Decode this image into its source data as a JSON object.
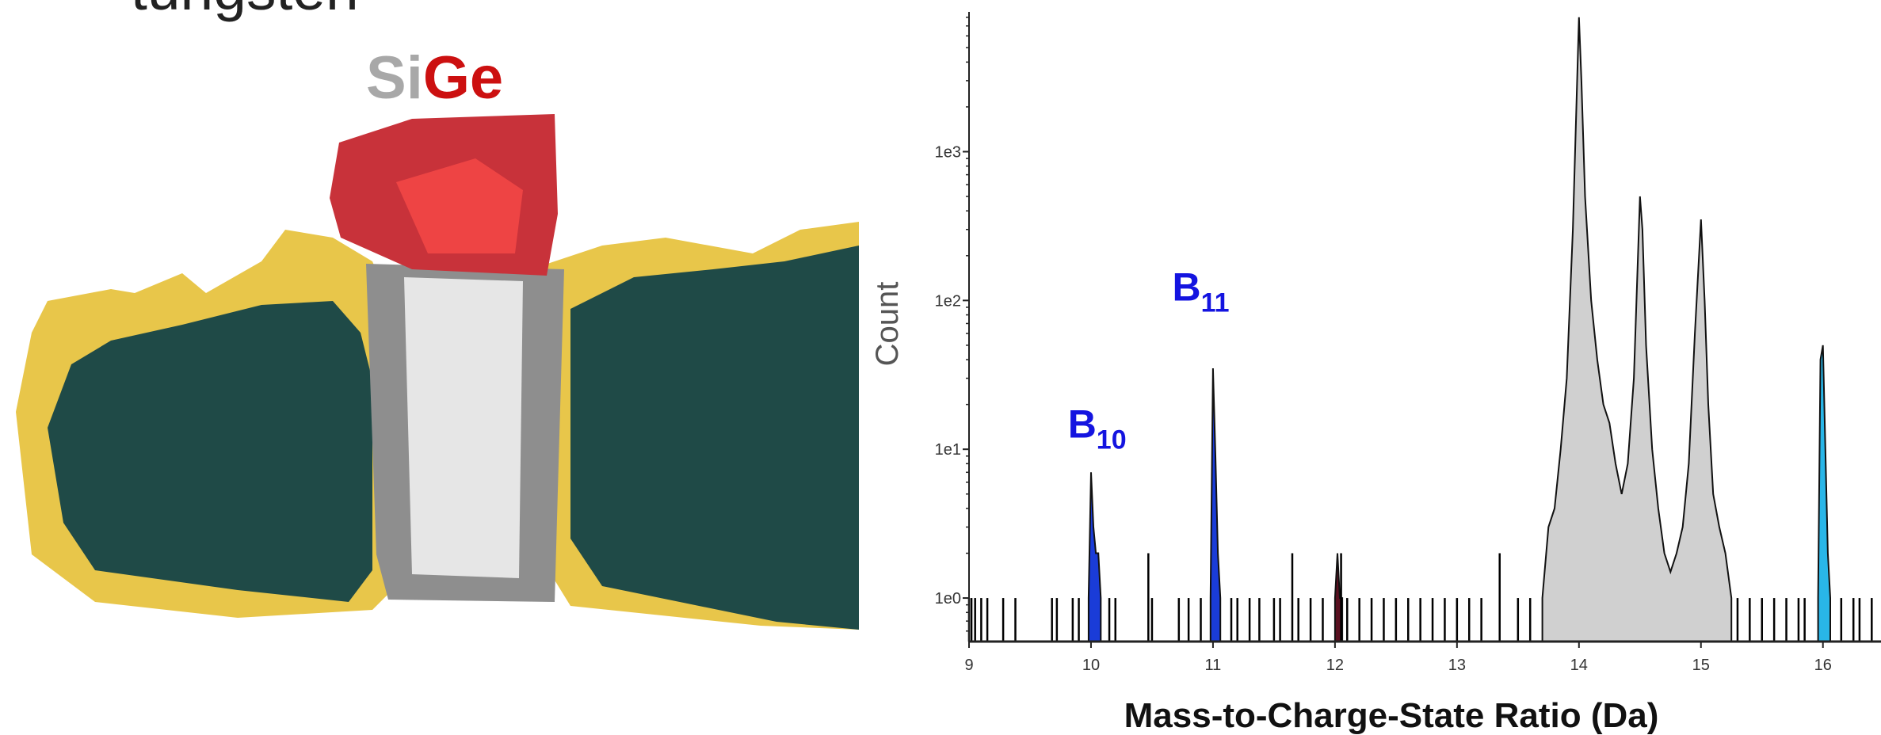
{
  "figure_labels": {
    "top": "tungsten",
    "si": "Si",
    "ge": "Ge"
  },
  "chart_data": {
    "type": "area",
    "x_label": "Mass-to-Charge-State Ratio (Da)",
    "y_label": "Count",
    "log_y": true,
    "xlim": [
      9,
      16.45
    ],
    "ylim": [
      0.51,
      8700
    ],
    "xticks": [
      9,
      10,
      11,
      12,
      13,
      14,
      15,
      16
    ],
    "yticks": [
      {
        "value": 1,
        "label": "1e0"
      },
      {
        "value": 10,
        "label": "1e1"
      },
      {
        "value": 100,
        "label": "1e2"
      },
      {
        "value": 1000,
        "label": "1e3"
      }
    ],
    "annotations": [
      {
        "text": "B",
        "subscript": "10",
        "x": 10.05,
        "y": 12
      },
      {
        "text": "B",
        "subscript": "11",
        "x": 10.9,
        "y": 100
      }
    ],
    "series": [
      {
        "type": "area",
        "color": "#d0d0d0",
        "x": [
          13.7,
          13.75,
          13.8,
          13.85,
          13.9,
          13.95,
          14.0,
          14.02,
          14.05,
          14.1,
          14.15,
          14.2,
          14.25,
          14.3,
          14.35,
          14.4,
          14.45,
          14.5,
          14.52,
          14.55,
          14.6,
          14.65,
          14.7,
          14.75,
          14.8,
          14.85,
          14.9,
          14.95,
          15.0,
          15.03,
          15.06,
          15.1,
          15.15,
          15.2,
          15.25
        ],
        "values": [
          1,
          3,
          4,
          10,
          30,
          300,
          8000,
          3000,
          500,
          100,
          40,
          20,
          15,
          8,
          5,
          8,
          30,
          500,
          300,
          50,
          10,
          4,
          2,
          1.5,
          2,
          3,
          8,
          60,
          350,
          100,
          20,
          5,
          3,
          2,
          1
        ]
      },
      {
        "type": "area",
        "color": "#1a3cd8",
        "x": [
          9.98,
          10.0,
          10.02,
          10.04,
          10.06,
          10.08
        ],
        "values": [
          1,
          7,
          3,
          2,
          2,
          1
        ]
      },
      {
        "type": "area",
        "color": "#1a3cd8",
        "x": [
          10.98,
          11.0,
          11.02,
          11.04,
          11.06
        ],
        "values": [
          1,
          35,
          9,
          2,
          1
        ]
      },
      {
        "type": "area",
        "color": "#5a1020",
        "x": [
          12.0,
          12.02,
          12.04,
          12.06
        ],
        "values": [
          1,
          2,
          1,
          1
        ]
      },
      {
        "type": "area",
        "color": "#29b6e8",
        "x": [
          15.96,
          15.98,
          16.0,
          16.02,
          16.04,
          16.06
        ],
        "values": [
          1,
          40,
          50,
          10,
          2,
          1
        ]
      },
      {
        "type": "spikes",
        "color": "#000000",
        "x": [
          9.0,
          9.02,
          9.05,
          9.1,
          9.15,
          9.28,
          9.38,
          9.68,
          9.72,
          9.85,
          9.9,
          10.15,
          10.2,
          10.47,
          10.5,
          10.72,
          10.8,
          10.9,
          11.15,
          11.2,
          11.3,
          11.38,
          11.5,
          11.55,
          11.65,
          11.7,
          11.8,
          11.9,
          12.05,
          12.1,
          12.2,
          12.3,
          12.4,
          12.5,
          12.6,
          12.7,
          12.8,
          12.9,
          13.0,
          13.1,
          13.2,
          13.35,
          13.5,
          13.6,
          15.3,
          15.4,
          15.5,
          15.6,
          15.7,
          15.8,
          15.85,
          16.15,
          16.25,
          16.3,
          16.4
        ],
        "values": [
          1,
          1,
          1,
          1,
          1,
          1,
          1,
          1,
          1,
          1,
          1,
          1,
          1,
          2,
          1,
          1,
          1,
          1,
          1,
          1,
          1,
          1,
          1,
          1,
          2,
          1,
          1,
          1,
          2,
          1,
          1,
          1,
          1,
          1,
          1,
          1,
          1,
          1,
          1,
          1,
          1,
          2,
          1,
          1,
          1,
          1,
          1,
          1,
          1,
          1,
          1,
          1,
          1,
          1,
          1
        ]
      }
    ]
  }
}
